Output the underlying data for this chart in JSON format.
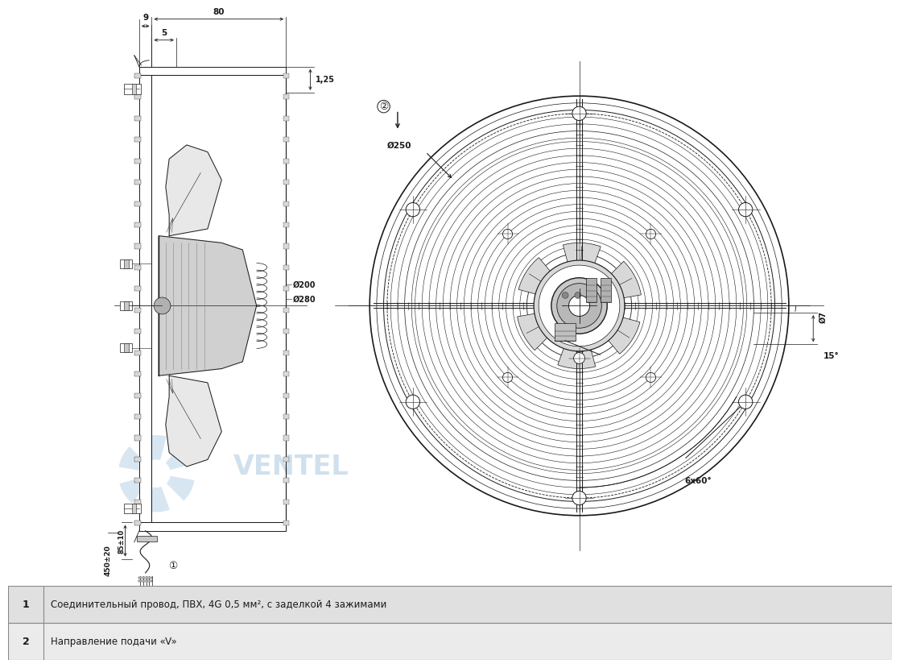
{
  "bg_color": "#ffffff",
  "line_color": "#1a1a1a",
  "dim_color": "#1a1a1a",
  "watermark_color": "#aac8e0",
  "table_bg1": "#e0e0e0",
  "table_bg2": "#ebebeb",
  "table_border": "#888888",
  "table_text_color": "#1a1a1a",
  "row1_number": "1",
  "row1_text": "Соединительный провод, ПВХ, 4G 0,5 мм², с заделкой 4 зажимами",
  "row2_number": "2",
  "row2_text": "Направление подачи «V»",
  "dim_9": "9",
  "dim_80": "80",
  "dim_5": "5",
  "dim_125": "1,25",
  "dim_200": "Ø200",
  "dim_280": "Ø280",
  "dim_250": "Ø250",
  "dim_7": "Ø7",
  "dim_15deg": "15°",
  "dim_6x60deg": "6x60°",
  "dim_450": "450±20",
  "dim_85": "85±10",
  "fig_width": 10.98,
  "fig_height": 8.04
}
